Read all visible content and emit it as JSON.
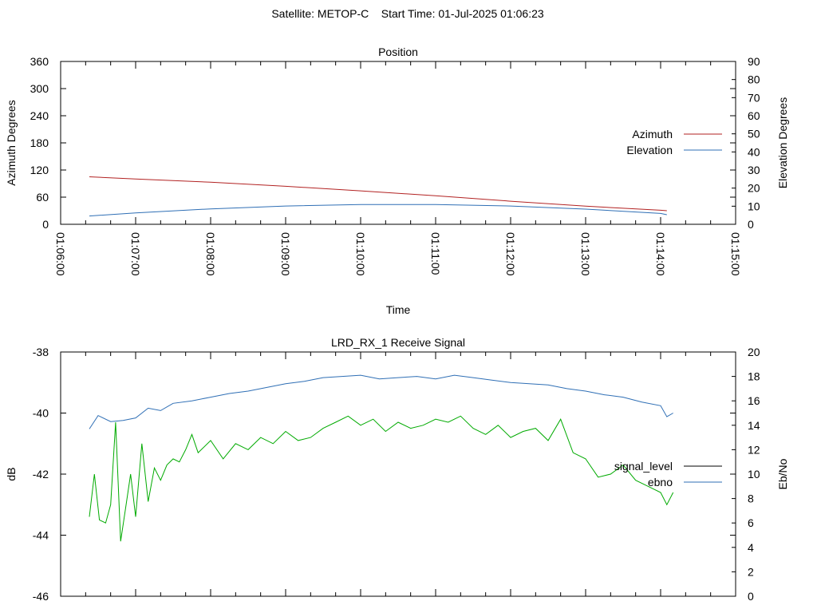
{
  "header": {
    "title": "Satellite: METOP-C    Start Time: 01-Jul-2025 01:06:23"
  },
  "colors": {
    "azimuth": "#b22222",
    "elevation": "#2f6fb5",
    "signal_level": "#00aa00",
    "ebno": "#2f6fb5",
    "axis": "#000000",
    "legend_signal_level": "#000000"
  },
  "chart_data": [
    {
      "type": "line",
      "title": "Position",
      "xlabel": "Time",
      "ylabel": "Azimuth Degrees",
      "y2label": "Elevation Degrees",
      "xlim": [
        "01:06:00",
        "01:15:00"
      ],
      "ylim": [
        0,
        360
      ],
      "y2lim": [
        0,
        90
      ],
      "x_ticks": [
        "01:06:00",
        "01:07:00",
        "01:08:00",
        "01:09:00",
        "01:10:00",
        "01:11:00",
        "01:12:00",
        "01:13:00",
        "01:14:00",
        "01:15:00"
      ],
      "y_ticks": [
        0,
        60,
        120,
        180,
        240,
        300,
        360
      ],
      "y2_ticks": [
        0,
        10,
        20,
        30,
        40,
        50,
        60,
        70,
        80,
        90
      ],
      "legend_position": "right",
      "series": [
        {
          "name": "Azimuth",
          "axis": "y",
          "x": [
            "01:06:23",
            "01:07:00",
            "01:08:00",
            "01:09:00",
            "01:10:00",
            "01:11:00",
            "01:12:00",
            "01:13:00",
            "01:14:00",
            "01:14:05"
          ],
          "y": [
            105,
            100,
            93,
            84,
            74,
            63,
            51,
            40,
            31,
            30
          ]
        },
        {
          "name": "Elevation",
          "axis": "y2",
          "x": [
            "01:06:23",
            "01:07:00",
            "01:08:00",
            "01:09:00",
            "01:10:00",
            "01:11:00",
            "01:12:00",
            "01:13:00",
            "01:14:00",
            "01:14:05"
          ],
          "y": [
            4.6,
            6.3,
            8.5,
            10.1,
            10.9,
            10.9,
            10.1,
            8.4,
            6.0,
            5.3
          ]
        }
      ]
    },
    {
      "type": "line",
      "title": "LRD_RX_1 Receive Signal",
      "ylabel": "dB",
      "y2label": "Eb/No",
      "xlim": [
        "01:06:00",
        "01:15:00"
      ],
      "ylim": [
        -46,
        -38
      ],
      "y2lim": [
        0,
        20
      ],
      "y_ticks": [
        -46,
        -44,
        -42,
        -40,
        -38
      ],
      "y2_ticks": [
        0,
        2,
        4,
        6,
        8,
        10,
        12,
        14,
        16,
        18,
        20
      ],
      "legend_position": "right",
      "series": [
        {
          "name": "signal_level",
          "axis": "y",
          "x": [
            "01:06:23",
            "01:06:27",
            "01:06:31",
            "01:06:36",
            "01:06:40",
            "01:06:44",
            "01:06:48",
            "01:06:52",
            "01:06:56",
            "01:07:00",
            "01:07:05",
            "01:07:10",
            "01:07:15",
            "01:07:20",
            "01:07:25",
            "01:07:30",
            "01:07:35",
            "01:07:40",
            "01:07:45",
            "01:07:50",
            "01:08:00",
            "01:08:10",
            "01:08:20",
            "01:08:30",
            "01:08:40",
            "01:08:50",
            "01:09:00",
            "01:09:10",
            "01:09:20",
            "01:09:30",
            "01:09:40",
            "01:09:50",
            "01:10:00",
            "01:10:10",
            "01:10:20",
            "01:10:30",
            "01:10:40",
            "01:10:50",
            "01:11:00",
            "01:11:10",
            "01:11:20",
            "01:11:30",
            "01:11:40",
            "01:11:50",
            "01:12:00",
            "01:12:10",
            "01:12:20",
            "01:12:30",
            "01:12:40",
            "01:12:50",
            "01:13:00",
            "01:13:10",
            "01:13:20",
            "01:13:30",
            "01:13:40",
            "01:13:50",
            "01:14:00",
            "01:14:05",
            "01:14:10"
          ],
          "y": [
            -43.4,
            -42.0,
            -43.5,
            -43.6,
            -43.0,
            -40.3,
            -44.2,
            -43.1,
            -42.0,
            -43.4,
            -41.0,
            -42.9,
            -41.8,
            -42.2,
            -41.7,
            -41.5,
            -41.6,
            -41.2,
            -40.7,
            -41.3,
            -40.9,
            -41.5,
            -41.0,
            -41.2,
            -40.8,
            -41.0,
            -40.6,
            -40.9,
            -40.8,
            -40.5,
            -40.3,
            -40.1,
            -40.4,
            -40.2,
            -40.6,
            -40.3,
            -40.5,
            -40.4,
            -40.2,
            -40.3,
            -40.1,
            -40.5,
            -40.7,
            -40.4,
            -40.8,
            -40.6,
            -40.5,
            -40.9,
            -40.2,
            -41.3,
            -41.5,
            -42.1,
            -42.0,
            -41.7,
            -42.2,
            -42.4,
            -42.6,
            -43.0,
            -42.6
          ]
        },
        {
          "name": "ebno",
          "axis": "y2",
          "x": [
            "01:06:23",
            "01:06:30",
            "01:06:40",
            "01:06:50",
            "01:07:00",
            "01:07:10",
            "01:07:20",
            "01:07:30",
            "01:07:45",
            "01:08:00",
            "01:08:15",
            "01:08:30",
            "01:08:45",
            "01:09:00",
            "01:09:15",
            "01:09:30",
            "01:09:45",
            "01:10:00",
            "01:10:15",
            "01:10:30",
            "01:10:45",
            "01:11:00",
            "01:11:15",
            "01:11:30",
            "01:11:45",
            "01:12:00",
            "01:12:15",
            "01:12:30",
            "01:12:45",
            "01:13:00",
            "01:13:15",
            "01:13:30",
            "01:13:45",
            "01:14:00",
            "01:14:05",
            "01:14:10"
          ],
          "y": [
            13.7,
            14.8,
            14.3,
            14.4,
            14.6,
            15.4,
            15.2,
            15.8,
            16.0,
            16.3,
            16.6,
            16.8,
            17.1,
            17.4,
            17.6,
            17.9,
            18.0,
            18.1,
            17.8,
            17.9,
            18.0,
            17.8,
            18.1,
            17.9,
            17.7,
            17.5,
            17.4,
            17.3,
            17.0,
            16.8,
            16.5,
            16.3,
            15.9,
            15.6,
            14.7,
            15.0
          ]
        }
      ]
    }
  ]
}
